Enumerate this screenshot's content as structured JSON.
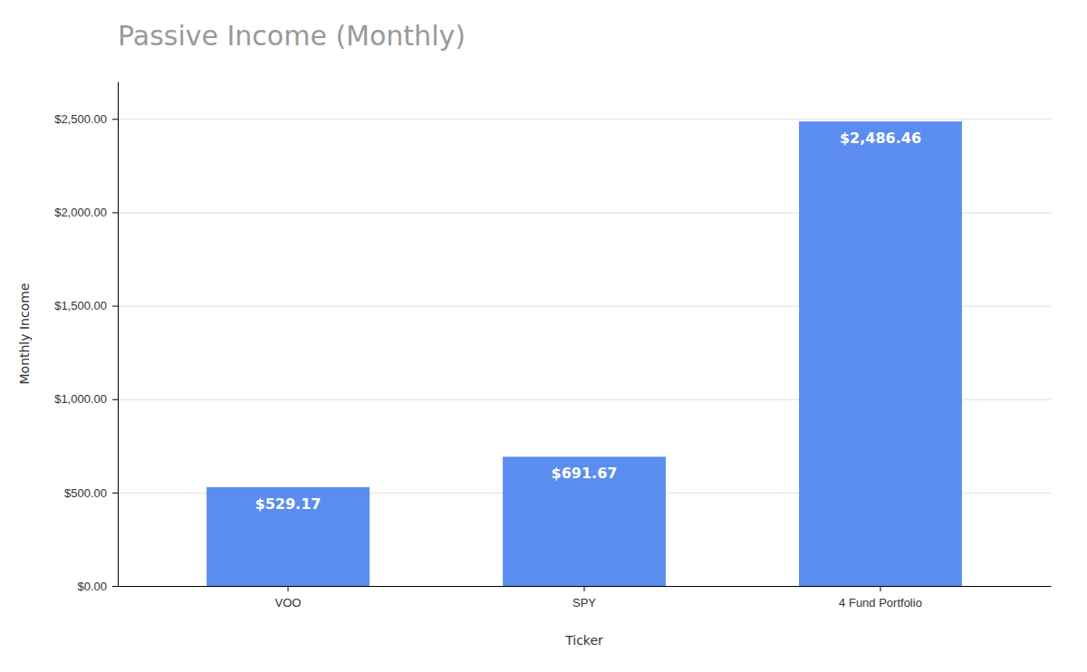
{
  "chart_data": {
    "type": "bar",
    "title": "Passive Income (Monthly)",
    "xlabel": "Ticker",
    "ylabel": "Monthly Income",
    "categories": [
      "VOO",
      "SPY",
      "4 Fund Portfolio"
    ],
    "values": [
      529.17,
      691.67,
      2486.46
    ],
    "value_labels": [
      "$529.17",
      "$691.67",
      "$2,486.46"
    ],
    "color": "#5B8DEF",
    "ylim": [
      0,
      2700
    ],
    "yticks": [
      {
        "value": 0,
        "label": "$0.00"
      },
      {
        "value": 500,
        "label": "$500.00"
      },
      {
        "value": 1000,
        "label": "$1,000.00"
      },
      {
        "value": 1500,
        "label": "$1,500.00"
      },
      {
        "value": 2000,
        "label": "$2,000.00"
      },
      {
        "value": 2500,
        "label": "$2,500.00"
      }
    ],
    "grid": true,
    "data_labels": true
  }
}
